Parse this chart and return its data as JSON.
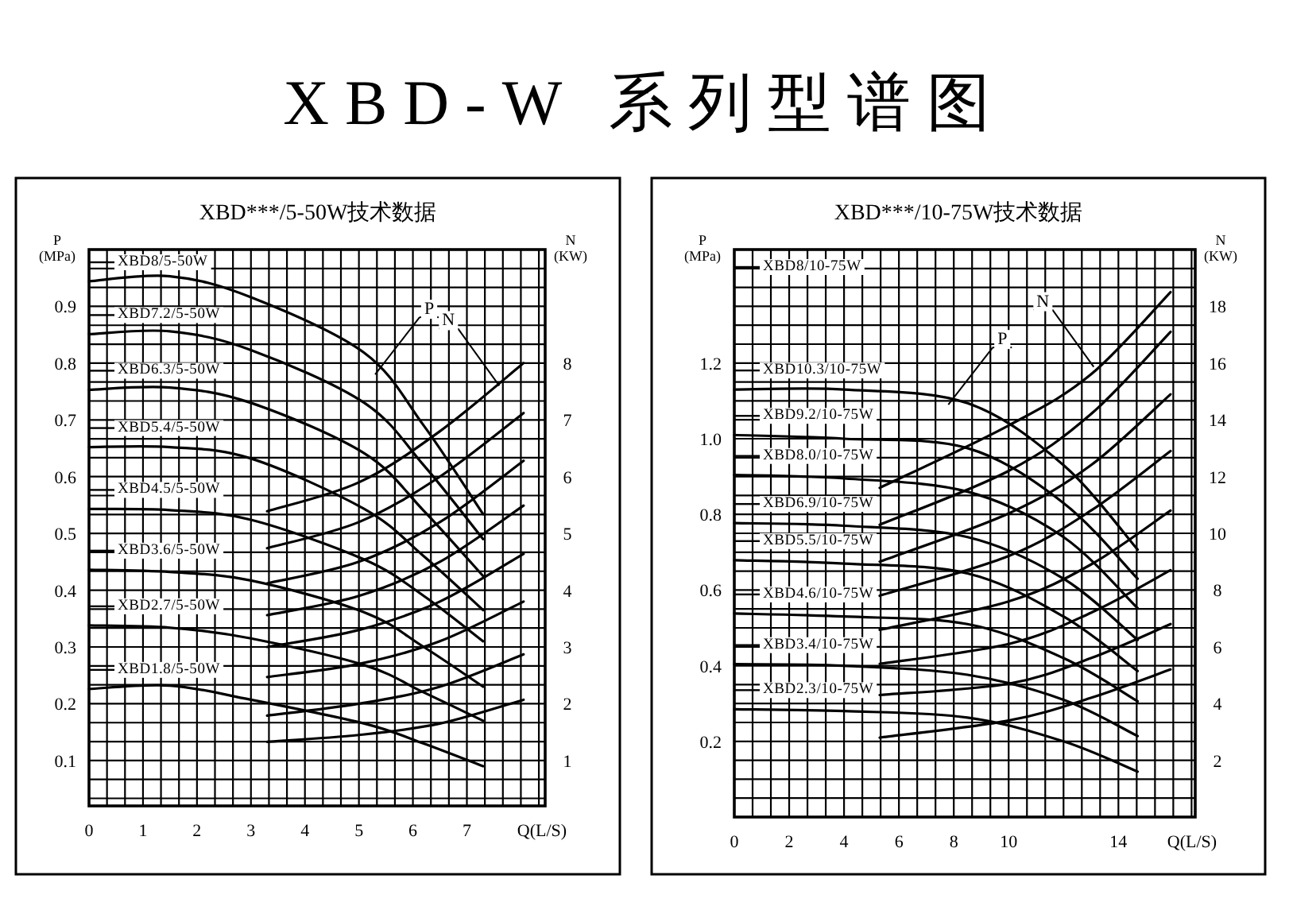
{
  "chart_data": [
    {
      "type": "line",
      "title": "XBD-W 系列型谱图",
      "subtitle": "XBD***/5-50W技术数据",
      "xlabel": "Q(L/S)",
      "ylabel": "P (MPa)",
      "y2label": "N (KW)",
      "grid": true,
      "xlim": [
        0,
        8.45
      ],
      "xticks": [
        0,
        1,
        2,
        3,
        4,
        5,
        6,
        7
      ],
      "ylim": [
        0.02,
        1.0
      ],
      "yticks": [
        0.1,
        0.2,
        0.3,
        0.4,
        0.5,
        0.6,
        0.7,
        0.8,
        0.9
      ],
      "y2lim": [
        0.2,
        10.0
      ],
      "y2ticks": [
        1,
        2,
        3,
        4,
        5,
        6,
        7,
        8
      ],
      "series": [
        {
          "name": "XBD8/5-50W",
          "color": "#000000",
          "x": [
            0,
            1.5,
            3,
            5.1,
            6.2,
            7.3
          ],
          "values": [
            0.944,
            0.953,
            0.916,
            0.818,
            0.69,
            0.534
          ]
        },
        {
          "name": "XBD7.2/5-50W",
          "color": "#000000",
          "x": [
            0,
            1.5,
            3,
            5.1,
            6.2,
            7.3
          ],
          "values": [
            0.851,
            0.856,
            0.823,
            0.73,
            0.62,
            0.49
          ]
        },
        {
          "name": "XBD6.3/5-50W",
          "color": "#000000",
          "x": [
            0,
            1.5,
            3,
            5.1,
            6.2,
            7.3
          ],
          "values": [
            0.753,
            0.757,
            0.73,
            0.641,
            0.54,
            0.425
          ]
        },
        {
          "name": "XBD5.4/5-50W",
          "color": "#000000",
          "x": [
            0,
            1.5,
            3,
            5.1,
            6.2,
            7.3
          ],
          "values": [
            0.652,
            0.652,
            0.632,
            0.543,
            0.46,
            0.365
          ]
        },
        {
          "name": "XBD4.5/5-50W",
          "color": "#000000",
          "x": [
            0,
            1.5,
            3,
            5.1,
            6.2,
            7.3
          ],
          "values": [
            0.543,
            0.541,
            0.524,
            0.454,
            0.39,
            0.31
          ]
        },
        {
          "name": "XBD3.6/5-50W",
          "color": "#000000",
          "x": [
            0,
            1.5,
            3,
            5.1,
            6.2,
            7.3
          ],
          "values": [
            0.436,
            0.432,
            0.417,
            0.361,
            0.3,
            0.23
          ]
        },
        {
          "name": "XBD2.7/5-50W",
          "color": "#000000",
          "x": [
            0,
            1.5,
            3,
            5.1,
            6.2,
            7.3
          ],
          "values": [
            0.338,
            0.334,
            0.315,
            0.268,
            0.22,
            0.17
          ]
        },
        {
          "name": "XBD1.8/5-50W",
          "color": "#000000",
          "x": [
            0,
            1.5,
            3,
            5.1,
            6.2,
            7.3
          ],
          "values": [
            0.226,
            0.232,
            0.207,
            0.165,
            0.13,
            0.09
          ]
        },
        {
          "axis": "y2",
          "color": "#000000",
          "x": [
            3.3,
            5,
            6.5,
            8.05
          ],
          "values": [
            5.39,
            5.9,
            6.8,
            8.0
          ]
        },
        {
          "axis": "y2",
          "color": "#000000",
          "x": [
            3.3,
            5,
            6.5,
            8.05
          ],
          "values": [
            4.74,
            5.2,
            6.0,
            7.12
          ]
        },
        {
          "axis": "y2",
          "color": "#000000",
          "x": [
            3.3,
            5,
            6.5,
            8.05
          ],
          "values": [
            4.12,
            4.5,
            5.2,
            6.28
          ]
        },
        {
          "axis": "y2",
          "color": "#000000",
          "x": [
            3.3,
            5,
            6.5,
            8.05
          ],
          "values": [
            3.56,
            3.9,
            4.5,
            5.49
          ]
        },
        {
          "axis": "y2",
          "color": "#000000",
          "x": [
            3.3,
            5,
            6.5,
            8.05
          ],
          "values": [
            3.0,
            3.3,
            3.8,
            4.64
          ]
        },
        {
          "axis": "y2",
          "color": "#000000",
          "x": [
            3.3,
            5,
            6.5,
            8.05
          ],
          "values": [
            2.47,
            2.7,
            3.1,
            3.8
          ]
        },
        {
          "axis": "y2",
          "color": "#000000",
          "x": [
            3.3,
            5,
            6.5,
            8.05
          ],
          "values": [
            1.79,
            2.0,
            2.3,
            2.87
          ]
        },
        {
          "axis": "y2",
          "color": "#000000",
          "x": [
            3.3,
            5,
            6.5,
            8.05
          ],
          "values": [
            1.33,
            1.45,
            1.65,
            2.07
          ]
        }
      ],
      "legend": "left",
      "annotations": [
        {
          "text": "P",
          "x": 5.3,
          "y": 0.78
        },
        {
          "text": "N",
          "x": 7.6,
          "y": 0.76
        }
      ]
    },
    {
      "type": "line",
      "subtitle": "XBD***/10-75W技术数据",
      "xlabel": "Q(L/S)",
      "ylabel": "P (MPa)",
      "y2label": "N (KW)",
      "grid": true,
      "xlim": [
        0,
        16.8
      ],
      "xticks": [
        0,
        2,
        4,
        6,
        8,
        10,
        14
      ],
      "ylim": [
        0,
        1.5
      ],
      "yticks": [
        0.2,
        0.4,
        0.6,
        0.8,
        {
          "value": 1.0,
          "label": "1.0"
        },
        1.2
      ],
      "y2lim": [
        0,
        20
      ],
      "y2ticks": [
        2,
        4,
        6,
        8,
        10,
        12,
        14,
        16,
        18
      ],
      "series": [
        {
          "name": "XBD10.3/10-75W",
          "color": "#000000",
          "x": [
            0,
            4,
            8.5,
            12,
            14.7
          ],
          "values": [
            1.13,
            1.13,
            1.094,
            0.93,
            0.707
          ]
        },
        {
          "name": "XBD9.2/10-75W",
          "color": "#000000",
          "x": [
            0,
            4,
            8.5,
            12,
            14.7
          ],
          "values": [
            1.01,
            1.0,
            0.975,
            0.83,
            0.63
          ]
        },
        {
          "name": "XBD8.0/10-75W",
          "color": "#000000",
          "x": [
            0,
            4,
            8.5,
            12,
            14.7
          ],
          "values": [
            0.904,
            0.895,
            0.86,
            0.74,
            0.552
          ]
        },
        {
          "name": "XBD6.9/10-75W",
          "color": "#000000",
          "x": [
            0,
            4,
            8.5,
            12,
            14.7
          ],
          "values": [
            0.777,
            0.77,
            0.74,
            0.63,
            0.468
          ]
        },
        {
          "name": "XBD5.5/10-75W",
          "color": "#000000",
          "x": [
            0,
            4,
            8.5,
            12,
            14.7
          ],
          "values": [
            0.679,
            0.67,
            0.644,
            0.53,
            0.386
          ]
        },
        {
          "name": "XBD4.6/10-75W",
          "color": "#000000",
          "x": [
            0,
            4,
            8.5,
            12,
            14.7
          ],
          "values": [
            0.538,
            0.53,
            0.51,
            0.42,
            0.306
          ]
        },
        {
          "name": "XBD3.4/10-75W",
          "color": "#000000",
          "x": [
            0,
            4,
            8.5,
            12,
            14.7
          ],
          "values": [
            0.404,
            0.4,
            0.376,
            0.31,
            0.214
          ]
        },
        {
          "name": "XBD2.3/10-75W",
          "color": "#000000",
          "x": [
            0,
            4,
            8.5,
            12,
            14.7
          ],
          "values": [
            0.285,
            0.28,
            0.263,
            0.2,
            0.12
          ]
        },
        {
          "axis": "y2",
          "color": "#000000",
          "x": [
            5.3,
            10,
            13,
            15.9
          ],
          "values": [
            11.6,
            13.8,
            15.6,
            18.5
          ]
        },
        {
          "axis": "y2",
          "color": "#000000",
          "x": [
            5.3,
            10,
            13,
            15.9
          ],
          "values": [
            10.3,
            12.2,
            14.2,
            17.1
          ]
        },
        {
          "axis": "y2",
          "color": "#000000",
          "x": [
            5.3,
            10,
            13,
            15.9
          ],
          "values": [
            9.0,
            10.7,
            12.4,
            14.9
          ]
        },
        {
          "axis": "y2",
          "color": "#000000",
          "x": [
            5.3,
            10,
            13,
            15.9
          ],
          "values": [
            7.8,
            9.2,
            10.8,
            12.9
          ]
        },
        {
          "axis": "y2",
          "color": "#000000",
          "x": [
            5.3,
            10,
            13,
            15.9
          ],
          "values": [
            6.6,
            7.6,
            8.9,
            10.8
          ]
        },
        {
          "axis": "y2",
          "color": "#000000",
          "x": [
            5.3,
            10,
            13,
            15.9
          ],
          "values": [
            5.4,
            6.1,
            7.2,
            8.7
          ]
        },
        {
          "axis": "y2",
          "color": "#000000",
          "x": [
            5.3,
            10,
            13,
            15.9
          ],
          "values": [
            4.3,
            4.7,
            5.6,
            6.8
          ]
        },
        {
          "axis": "y2",
          "color": "#000000",
          "x": [
            5.3,
            10,
            13,
            15.9
          ],
          "values": [
            2.8,
            3.4,
            4.2,
            5.2
          ]
        }
      ],
      "legend": "left",
      "annotations": [
        "XBD8/10-75W",
        {
          "text": "P",
          "x": 7.8,
          "y": 1.09
        },
        {
          "text": "N",
          "x": 13.1,
          "y": 1.19
        }
      ]
    }
  ]
}
